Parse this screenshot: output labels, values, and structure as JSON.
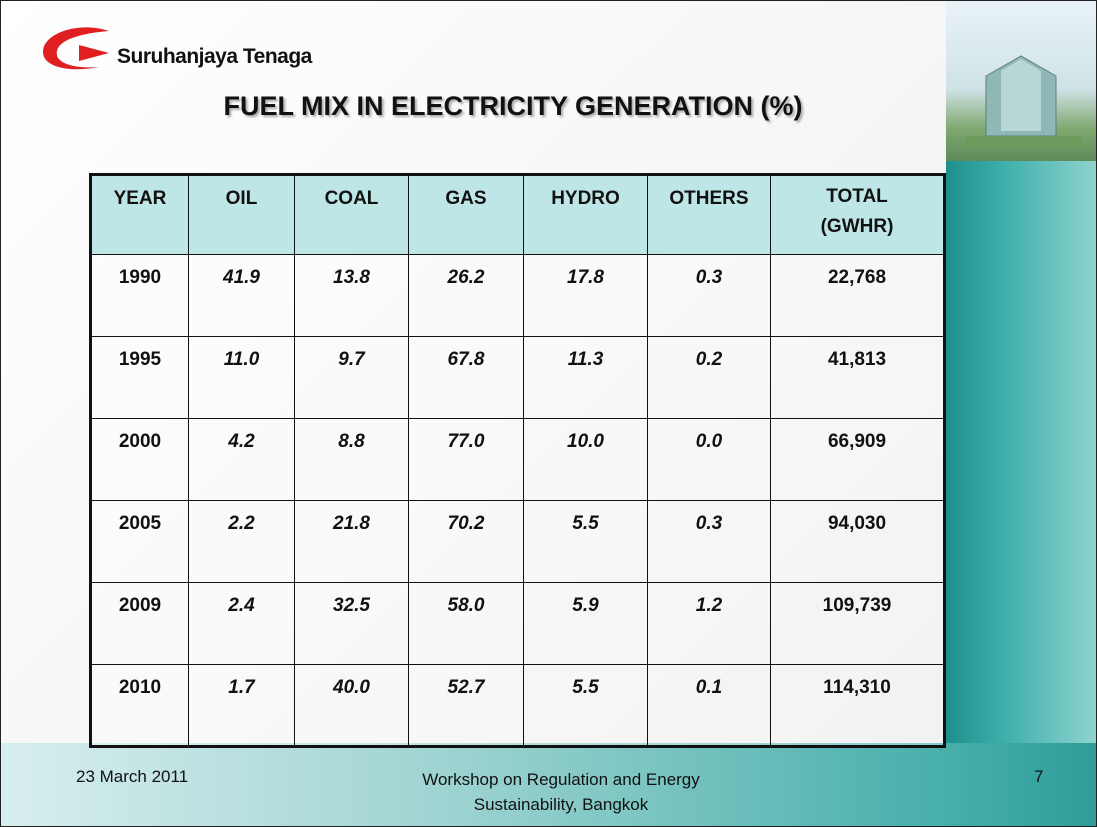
{
  "header": {
    "logo_text": "Suruhanjaya Tenaga",
    "title": "FUEL MIX IN ELECTRICITY GENERATION (%)"
  },
  "table": {
    "columns": [
      "YEAR",
      "OIL",
      "COAL",
      "GAS",
      "HYDRO",
      "OTHERS",
      "TOTAL (GWHR)"
    ],
    "rows": [
      [
        "1990",
        "41.9",
        "13.8",
        "26.2",
        "17.8",
        "0.3",
        "22,768"
      ],
      [
        "1995",
        "11.0",
        "9.7",
        "67.8",
        "11.3",
        "0.2",
        "41,813"
      ],
      [
        "2000",
        "4.2",
        "8.8",
        "77.0",
        "10.0",
        "0.0",
        "66,909"
      ],
      [
        "2005",
        "2.2",
        "21.8",
        "70.2",
        "5.5",
        "0.3",
        "94,030"
      ],
      [
        "2009",
        "2.4",
        "32.5",
        "58.0",
        "5.9",
        "1.2",
        "109,739"
      ],
      [
        "2010",
        "1.7",
        "40.0",
        "52.7",
        "5.5",
        "0.1",
        "114,310"
      ]
    ]
  },
  "footer": {
    "date": "23 March 2011",
    "event": "Workshop on Regulation and Energy Sustainability, Bangkok",
    "page": "7"
  }
}
